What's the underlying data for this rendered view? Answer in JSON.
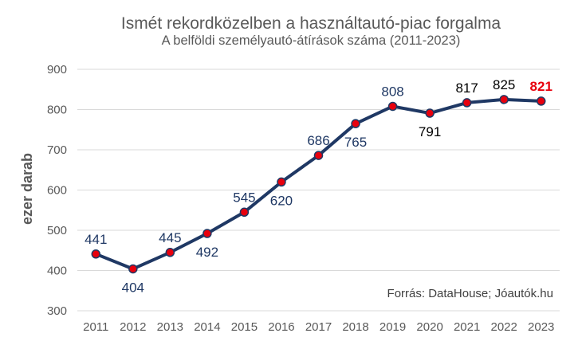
{
  "chart_data": {
    "type": "line",
    "title": "Ismét rekordközelben a használtautó-piac forgalma",
    "subtitle": "A belföldi személyautó-átírások száma (2011-2023)",
    "xlabel": "",
    "ylabel": "ezer darab",
    "ylim": [
      300,
      900
    ],
    "yticks": [
      "300",
      "400",
      "500",
      "600",
      "700",
      "800",
      "900"
    ],
    "categories": [
      "2011",
      "2012",
      "2013",
      "2014",
      "2015",
      "2016",
      "2017",
      "2018",
      "2019",
      "2020",
      "2021",
      "2022",
      "2023"
    ],
    "series": [
      {
        "values": [
          441,
          404,
          445,
          492,
          545,
          620,
          686,
          765,
          808,
          791,
          817,
          825,
          821
        ],
        "labels": [
          "441",
          "404",
          "445",
          "492",
          "545",
          "620",
          "686",
          "765",
          "808",
          "791",
          "817",
          "825",
          "821"
        ],
        "label_positions": [
          "above",
          "below",
          "above",
          "below",
          "above",
          "below",
          "above",
          "below",
          "above",
          "below",
          "above",
          "above",
          "above"
        ]
      }
    ],
    "grid": true,
    "source": "Forrás: DataHouse; Jóautók.hu",
    "colors": {
      "line": "#1f3864",
      "marker": "#e8000d",
      "label_early": "#1f3864",
      "label_late": "#000000",
      "label_last": "#e8000d",
      "grid": "#d9d9d9"
    }
  }
}
